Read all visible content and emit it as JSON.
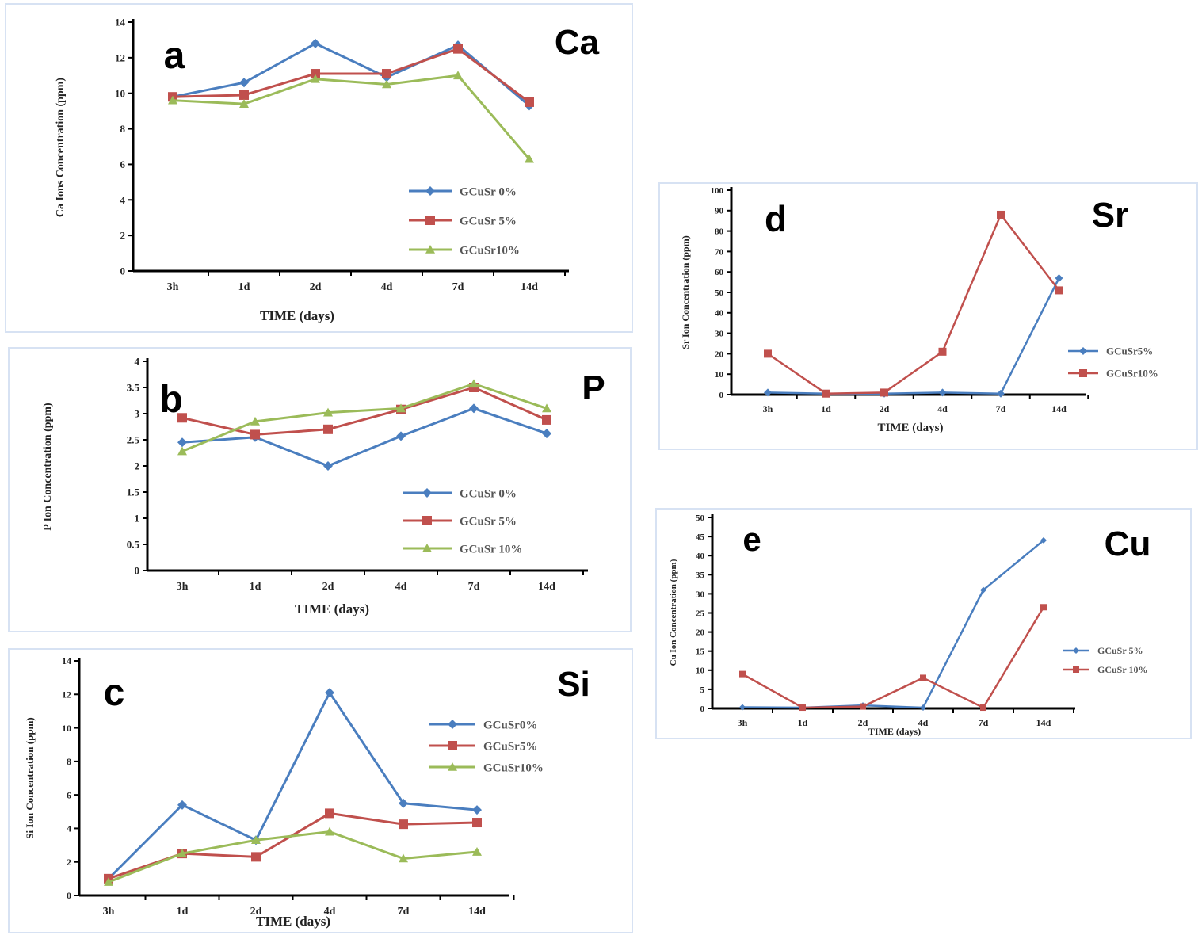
{
  "colors": {
    "blue": "#4a7ebf",
    "red": "#c0504d",
    "green": "#9bbb59",
    "axis": "#000000"
  },
  "chart_data": [
    {
      "type": "line",
      "panel": "a",
      "element": "Ca",
      "categories": [
        "3h",
        "1d",
        "2d",
        "4d",
        "7d",
        "14d"
      ],
      "xlabel": "TIME (days)",
      "ylabel": "Ca Ions Concentration (ppm)",
      "ylim": [
        0,
        14
      ],
      "yticks": [
        "0",
        "2",
        "4",
        "6",
        "8",
        "10",
        "12",
        "14"
      ],
      "legend_position": "center-right",
      "series": [
        {
          "name": "GCuSr 0%",
          "color": "#4a7ebf",
          "marker": "diamond",
          "values": [
            9.8,
            10.6,
            12.8,
            10.9,
            12.7,
            9.3
          ]
        },
        {
          "name": "GCuSr 5%",
          "color": "#c0504d",
          "marker": "square",
          "values": [
            9.8,
            9.9,
            11.1,
            11.1,
            12.5,
            9.5
          ]
        },
        {
          "name": "GCuSr10%",
          "color": "#9bbb59",
          "marker": "triangle",
          "values": [
            9.6,
            9.4,
            10.8,
            10.5,
            11.0,
            6.3
          ]
        }
      ]
    },
    {
      "type": "line",
      "panel": "b",
      "element": "P",
      "categories": [
        "3h",
        "1d",
        "2d",
        "4d",
        "7d",
        "14d"
      ],
      "xlabel": "TIME (days)",
      "ylabel": "P Ion Concentration (ppm)",
      "ylim": [
        0,
        4
      ],
      "yticks": [
        "0",
        "0.5",
        "1",
        "1.5",
        "2",
        "2.5",
        "3",
        "3.5",
        "4"
      ],
      "legend_position": "lower-right",
      "series": [
        {
          "name": "GCuSr 0%",
          "color": "#4a7ebf",
          "marker": "diamond",
          "values": [
            2.45,
            2.55,
            2.0,
            2.57,
            3.1,
            2.62
          ]
        },
        {
          "name": "GCuSr 5%",
          "color": "#c0504d",
          "marker": "square",
          "values": [
            2.92,
            2.6,
            2.7,
            3.08,
            3.5,
            2.88
          ]
        },
        {
          "name": "GCuSr 10%",
          "color": "#9bbb59",
          "marker": "triangle",
          "values": [
            2.28,
            2.85,
            3.02,
            3.1,
            3.57,
            3.1
          ]
        }
      ]
    },
    {
      "type": "line",
      "panel": "c",
      "element": "Si",
      "categories": [
        "3h",
        "1d",
        "2d",
        "4d",
        "7d",
        "14d"
      ],
      "xlabel": "TIME (days)",
      "ylabel": "Si Ion Concentration (ppm)",
      "ylim": [
        0,
        14
      ],
      "yticks": [
        "0",
        "2",
        "4",
        "6",
        "8",
        "10",
        "12",
        "14"
      ],
      "legend_position": "upper-right",
      "series": [
        {
          "name": "GCuSr0%",
          "color": "#4a7ebf",
          "marker": "diamond",
          "values": [
            1.0,
            5.4,
            3.3,
            12.1,
            5.5,
            5.1
          ]
        },
        {
          "name": "GCuSr5%",
          "color": "#c0504d",
          "marker": "square",
          "values": [
            1.0,
            2.5,
            2.3,
            4.9,
            4.25,
            4.35
          ]
        },
        {
          "name": "GCuSr10%",
          "color": "#9bbb59",
          "marker": "triangle",
          "values": [
            0.8,
            2.5,
            3.3,
            3.8,
            2.2,
            2.6
          ]
        }
      ]
    },
    {
      "type": "line",
      "panel": "d",
      "element": "Sr",
      "categories": [
        "3h",
        "1d",
        "2d",
        "4d",
        "7d",
        "14d"
      ],
      "xlabel": "TIME (days)",
      "ylabel": "Sr Ion Concentration (ppm)",
      "ylim": [
        0,
        100
      ],
      "yticks": [
        "0",
        "10",
        "20",
        "30",
        "40",
        "50",
        "60",
        "70",
        "80",
        "90",
        "100"
      ],
      "legend_position": "right",
      "series": [
        {
          "name": "GCuSr5%",
          "color": "#4a7ebf",
          "marker": "diamond",
          "values": [
            1,
            0.5,
            0.5,
            1,
            0.5,
            57
          ]
        },
        {
          "name": "GCuSr10%",
          "color": "#c0504d",
          "marker": "square",
          "values": [
            20,
            0.5,
            1,
            21,
            88,
            51
          ]
        }
      ]
    },
    {
      "type": "line",
      "panel": "e",
      "element": "Cu",
      "categories": [
        "3h",
        "1d",
        "2d",
        "4d",
        "7d",
        "14d"
      ],
      "xlabel": "TIME (days)",
      "ylabel": "Cu Ion Concentration (ppm)",
      "ylim": [
        0,
        50
      ],
      "yticks": [
        "0",
        "5",
        "10",
        "15",
        "20",
        "25",
        "30",
        "35",
        "40",
        "45",
        "50"
      ],
      "legend_position": "right",
      "series": [
        {
          "name": "GCuSr 5%",
          "color": "#4a7ebf",
          "marker": "diamond",
          "values": [
            0.3,
            0.2,
            0.8,
            0.2,
            31,
            44
          ]
        },
        {
          "name": "GCuSr 10%",
          "color": "#c0504d",
          "marker": "square",
          "values": [
            9,
            0.2,
            0.5,
            8,
            0.2,
            26.5
          ]
        }
      ]
    }
  ]
}
